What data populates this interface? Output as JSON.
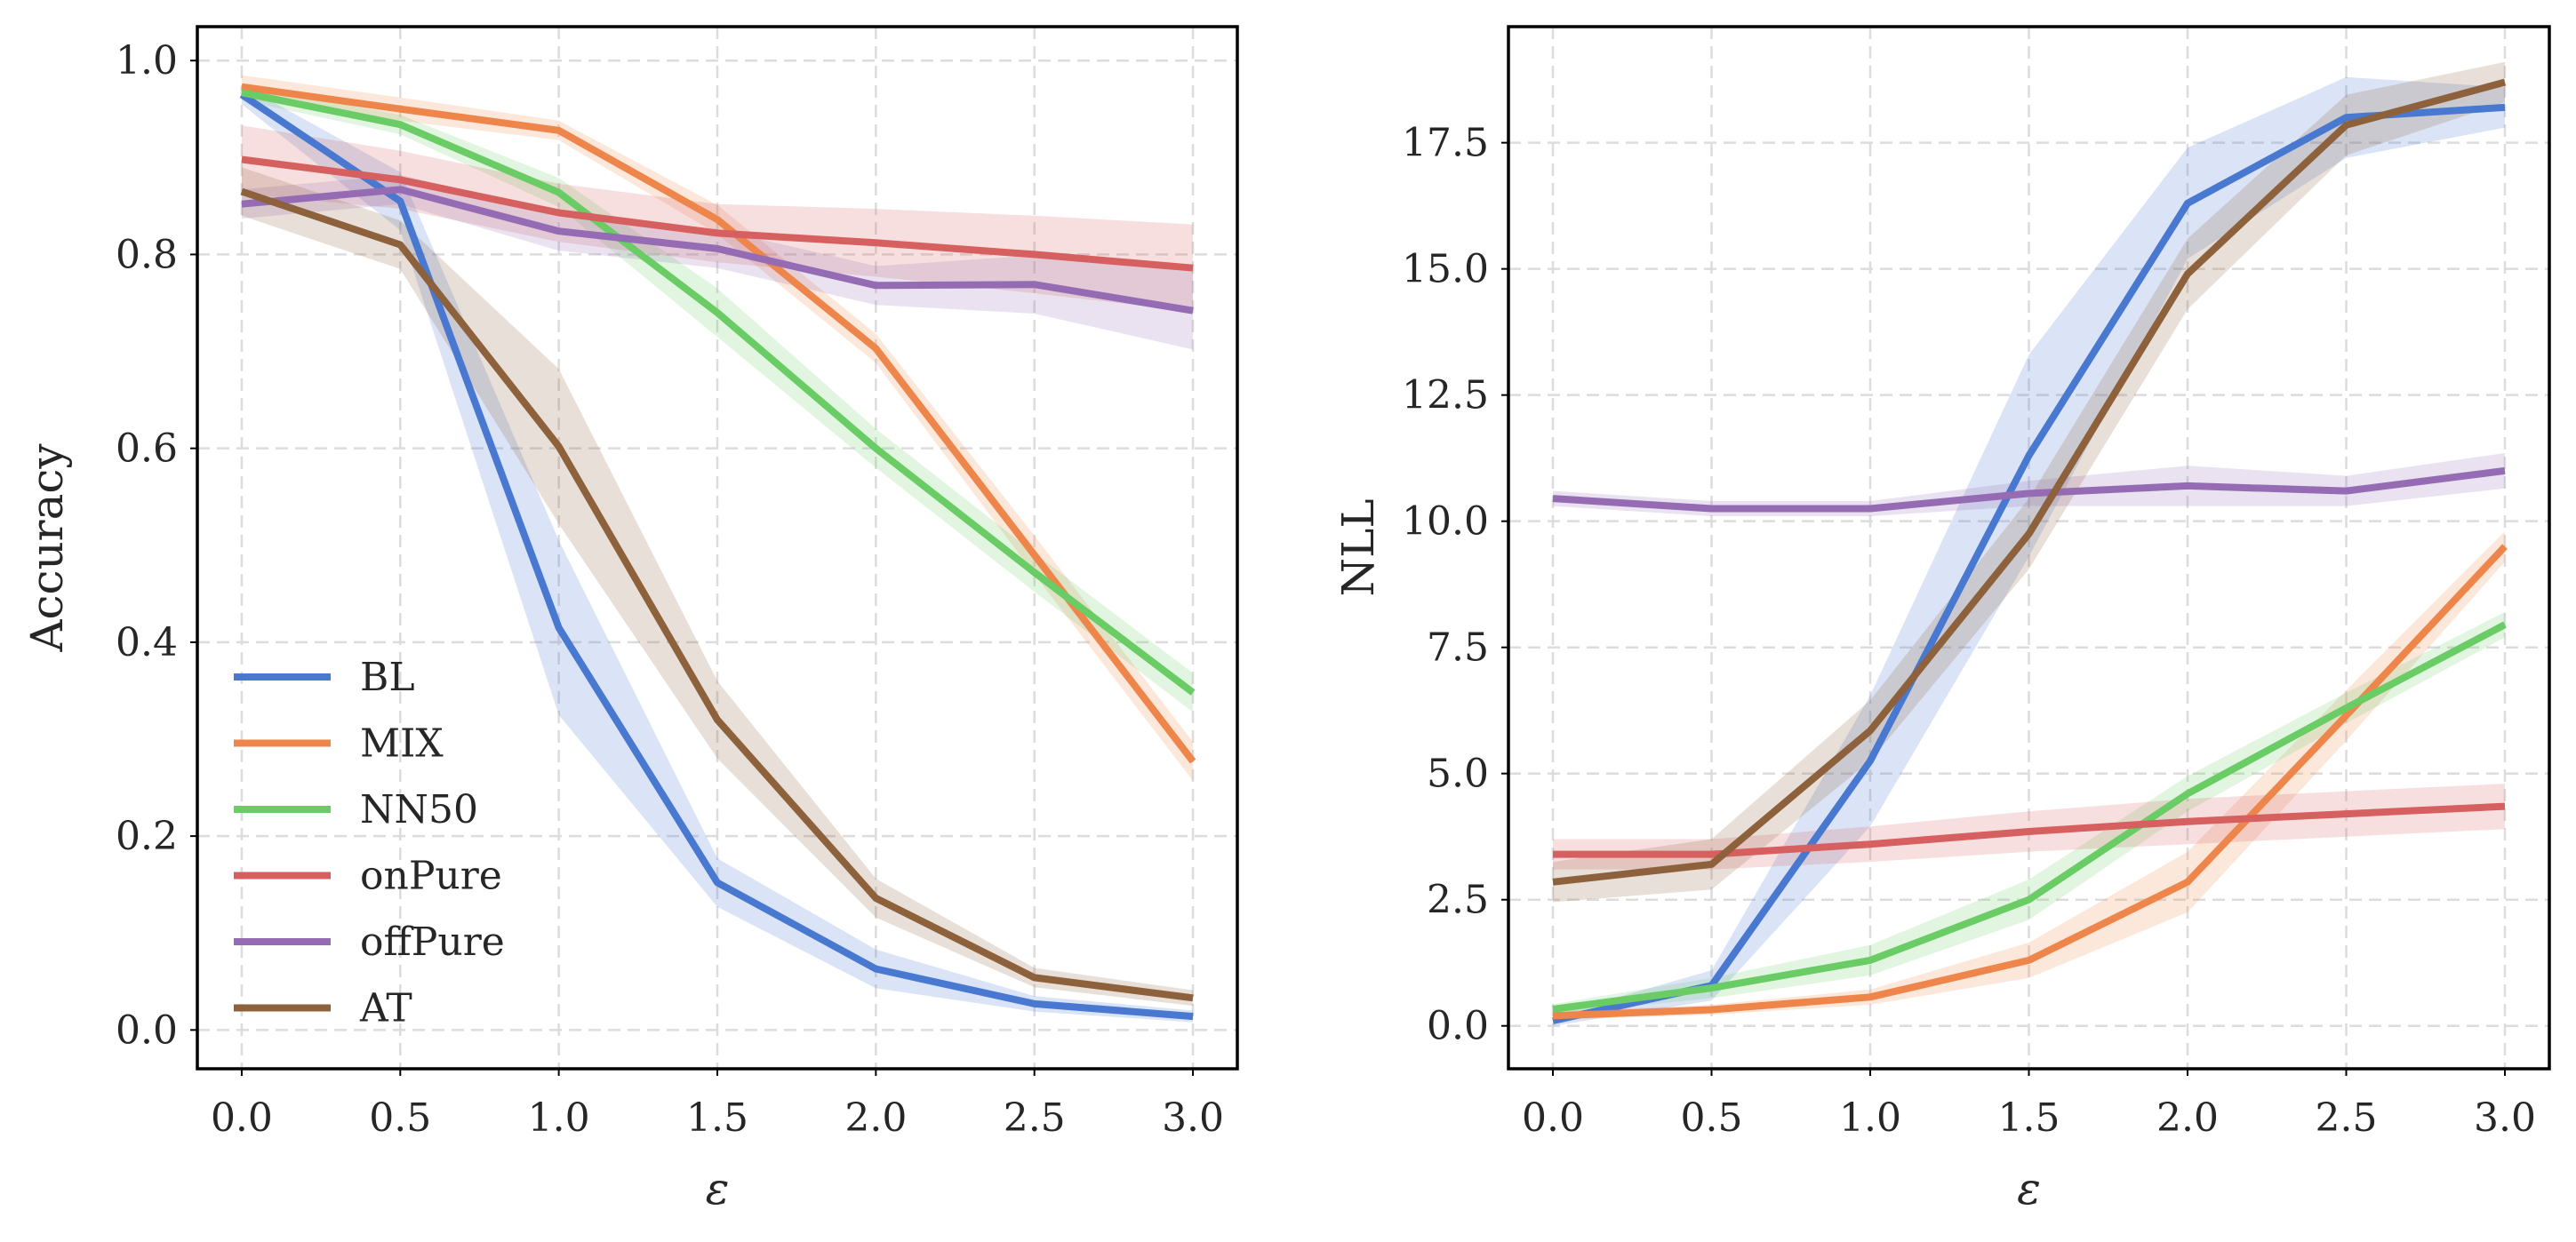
{
  "chart_data": [
    {
      "type": "line",
      "id": "left",
      "xlabel": "ε",
      "ylabel": "Accuracy",
      "x": [
        0.0,
        0.5,
        1.0,
        1.5,
        2.0,
        2.5,
        3.0
      ],
      "xticks": [
        "0.0",
        "0.5",
        "1.0",
        "1.5",
        "2.0",
        "2.5",
        "3.0"
      ],
      "xlim": [
        -0.14,
        3.14
      ],
      "yticks": [
        "0.0",
        "0.2",
        "0.4",
        "0.6",
        "0.8",
        "1.0"
      ],
      "ytick_values": [
        0.0,
        0.2,
        0.4,
        0.6,
        0.8,
        1.0
      ],
      "ylim": [
        -0.04,
        1.035
      ],
      "grid": true,
      "legend": "lower-left",
      "series": [
        {
          "name": "BL",
          "color": "#4878d0",
          "values": [
            0.965,
            0.855,
            0.415,
            0.152,
            0.063,
            0.027,
            0.014
          ],
          "band": [
            0.01,
            0.03,
            0.09,
            0.025,
            0.02,
            0.008,
            0.006
          ]
        },
        {
          "name": "MIX",
          "color": "#ee854a",
          "values": [
            0.973,
            0.95,
            0.928,
            0.836,
            0.703,
            0.49,
            0.277
          ],
          "band": [
            0.012,
            0.012,
            0.01,
            0.015,
            0.015,
            0.02,
            0.02
          ]
        },
        {
          "name": "NN50",
          "color": "#6acc64",
          "values": [
            0.967,
            0.934,
            0.864,
            0.74,
            0.6,
            0.472,
            0.348
          ],
          "band": [
            0.008,
            0.01,
            0.015,
            0.025,
            0.02,
            0.02,
            0.02
          ]
        },
        {
          "name": "onPure",
          "color": "#d65f5f",
          "values": [
            0.898,
            0.877,
            0.843,
            0.822,
            0.812,
            0.8,
            0.786
          ],
          "band": [
            0.035,
            0.03,
            0.03,
            0.03,
            0.035,
            0.04,
            0.045
          ]
        },
        {
          "name": "offPure",
          "color": "#956cb4",
          "values": [
            0.852,
            0.867,
            0.824,
            0.806,
            0.768,
            0.769,
            0.742
          ],
          "band": [
            0.015,
            0.015,
            0.02,
            0.02,
            0.02,
            0.03,
            0.04
          ]
        },
        {
          "name": "AT",
          "color": "#8c613c",
          "values": [
            0.865,
            0.81,
            0.602,
            0.32,
            0.136,
            0.054,
            0.033
          ],
          "band": [
            0.025,
            0.025,
            0.08,
            0.04,
            0.02,
            0.01,
            0.008
          ]
        }
      ]
    },
    {
      "type": "line",
      "id": "right",
      "xlabel": "ε",
      "ylabel": "NLL",
      "x": [
        0.0,
        0.5,
        1.0,
        1.5,
        2.0,
        2.5,
        3.0
      ],
      "xticks": [
        "0.0",
        "0.5",
        "1.0",
        "1.5",
        "2.0",
        "2.5",
        "3.0"
      ],
      "xlim": [
        -0.14,
        3.14
      ],
      "yticks": [
        "0.0",
        "2.5",
        "5.0",
        "7.5",
        "10.0",
        "12.5",
        "15.0",
        "17.5"
      ],
      "ytick_values": [
        0.0,
        2.5,
        5.0,
        7.5,
        10.0,
        12.5,
        15.0,
        17.5
      ],
      "ylim": [
        -0.85,
        19.8
      ],
      "grid": true,
      "legend": "none",
      "series": [
        {
          "name": "BL",
          "color": "#4878d0",
          "values": [
            0.1,
            0.8,
            5.25,
            11.3,
            16.3,
            18.0,
            18.2
          ],
          "band": [
            0.1,
            0.3,
            1.3,
            2.0,
            1.1,
            0.8,
            0.4
          ]
        },
        {
          "name": "MIX",
          "color": "#ee854a",
          "values": [
            0.2,
            0.32,
            0.57,
            1.3,
            2.85,
            6.15,
            9.5
          ],
          "band": [
            0.08,
            0.1,
            0.15,
            0.35,
            0.6,
            0.5,
            0.3
          ]
        },
        {
          "name": "NN50",
          "color": "#6acc64",
          "values": [
            0.33,
            0.75,
            1.3,
            2.5,
            4.6,
            6.3,
            7.95
          ],
          "band": [
            0.1,
            0.2,
            0.3,
            0.4,
            0.35,
            0.3,
            0.25
          ]
        },
        {
          "name": "onPure",
          "color": "#d65f5f",
          "values": [
            3.4,
            3.4,
            3.6,
            3.85,
            4.05,
            4.2,
            4.35
          ],
          "band": [
            0.3,
            0.3,
            0.35,
            0.4,
            0.45,
            0.45,
            0.45
          ]
        },
        {
          "name": "offPure",
          "color": "#956cb4",
          "values": [
            10.45,
            10.25,
            10.25,
            10.55,
            10.7,
            10.6,
            11.0
          ],
          "band": [
            0.15,
            0.15,
            0.15,
            0.25,
            0.4,
            0.3,
            0.35
          ]
        },
        {
          "name": "AT",
          "color": "#8c613c",
          "values": [
            2.85,
            3.2,
            5.85,
            9.75,
            14.9,
            17.85,
            18.7
          ],
          "band": [
            0.4,
            0.5,
            0.6,
            0.7,
            0.7,
            0.6,
            0.4
          ]
        }
      ]
    }
  ]
}
